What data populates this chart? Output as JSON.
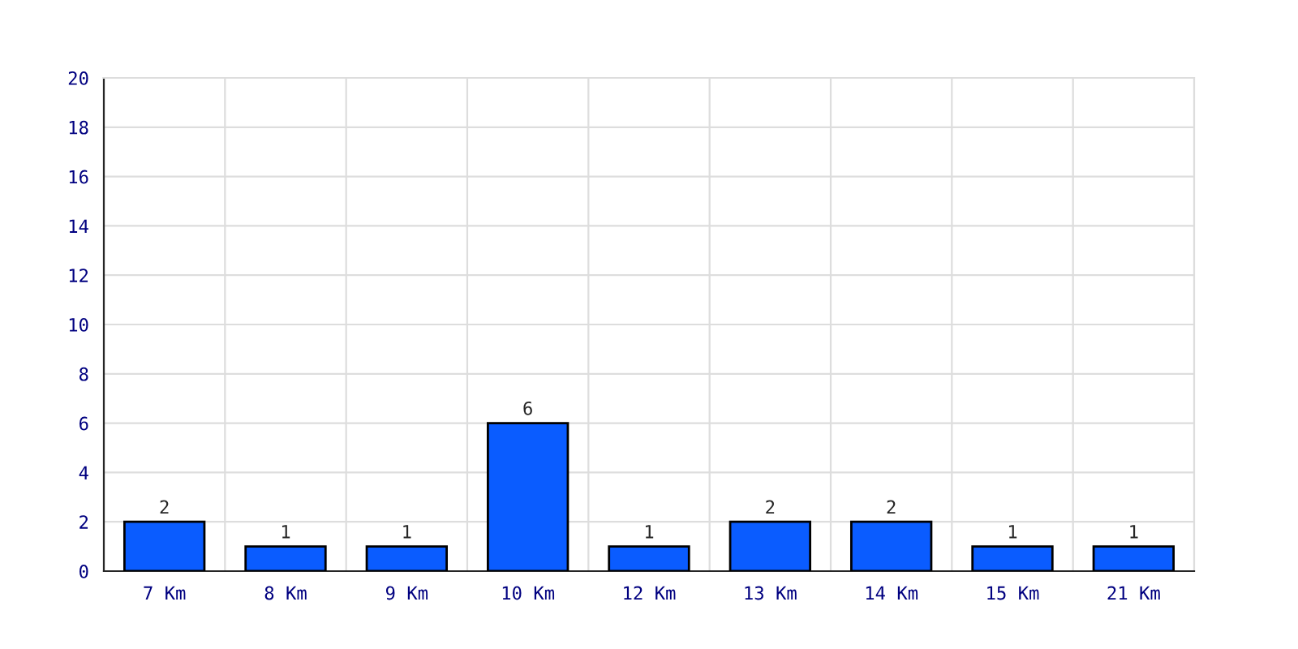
{
  "chart_data": {
    "type": "bar",
    "categories": [
      "7 Km",
      "8 Km",
      "9 Km",
      "10 Km",
      "12 Km",
      "13 Km",
      "14 Km",
      "15 Km",
      "21 Km"
    ],
    "values": [
      2,
      1,
      1,
      6,
      1,
      2,
      2,
      1,
      1
    ],
    "color": "#0a5cff",
    "ylim": [
      0,
      20
    ],
    "yticks": [
      0,
      2,
      4,
      6,
      8,
      10,
      12,
      14,
      16,
      18,
      20
    ],
    "grid": true,
    "data_labels": true
  }
}
